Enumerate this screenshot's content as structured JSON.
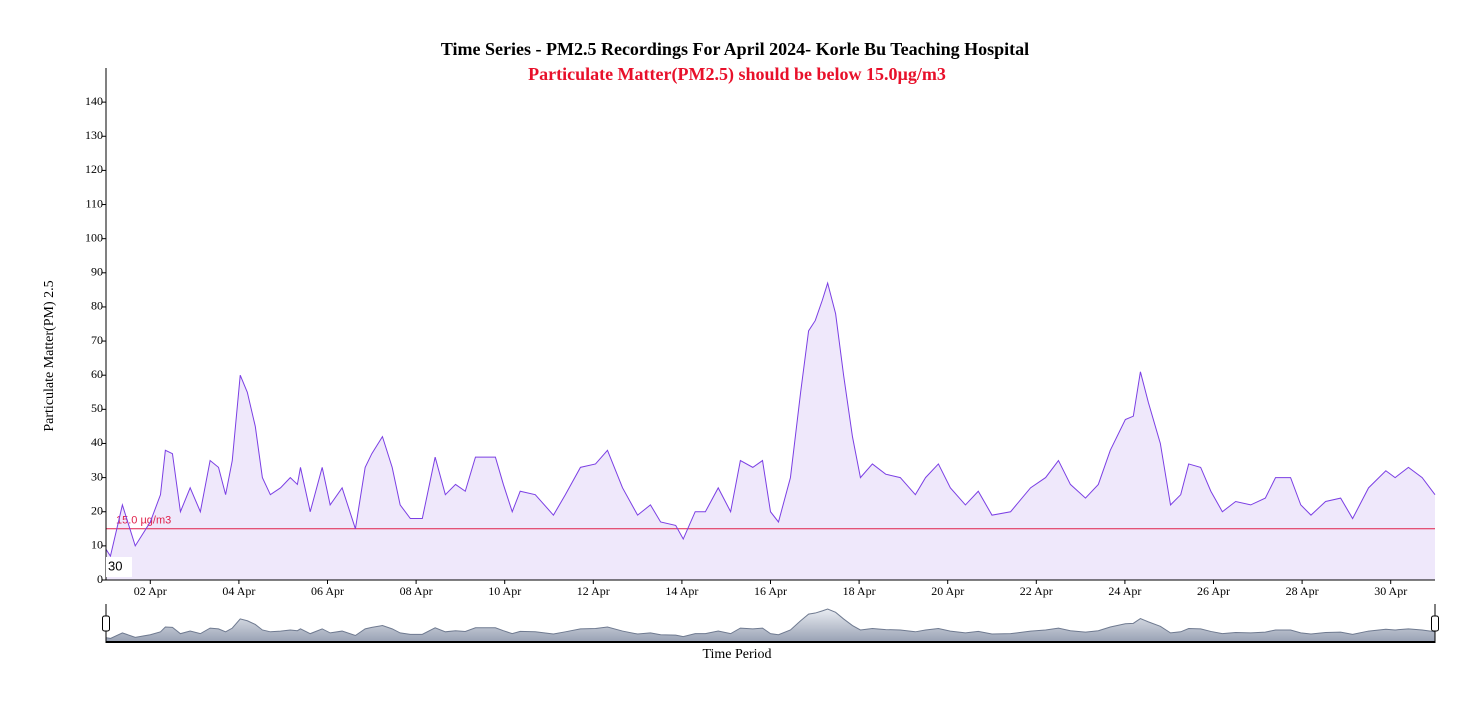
{
  "chart_data": {
    "type": "area",
    "title": "Time Series - PM2.5 Recordings For April 2024- Korle Bu Teaching Hospital",
    "subtitle": "Particulate Matter(PM2.5) should be below 15.0µg/m3",
    "x_label": "Time Period",
    "y_label": "Particulate Matter(PM) 2.5",
    "color": "#7b3fe4",
    "fill": "#efe8fb",
    "x": [
      1.0,
      1.1,
      1.37,
      1.66,
      2.0,
      2.23,
      2.34,
      2.5,
      2.68,
      2.9,
      3.13,
      3.35,
      3.54,
      3.7,
      3.85,
      4.03,
      4.19,
      4.37,
      4.53,
      4.71,
      4.94,
      5.16,
      5.32,
      5.39,
      5.61,
      5.88,
      6.06,
      6.33,
      6.63,
      6.85,
      7.0,
      7.24,
      7.46,
      7.64,
      7.87,
      8.14,
      8.43,
      8.66,
      8.89,
      9.11,
      9.34,
      9.79,
      9.97,
      10.17,
      10.35,
      10.69,
      11.1,
      11.37,
      11.71,
      12.05,
      12.32,
      12.66,
      13.0,
      13.29,
      13.52,
      13.86,
      14.03,
      14.3,
      14.53,
      14.82,
      15.1,
      15.32,
      15.6,
      15.82,
      16.0,
      16.18,
      16.45,
      16.68,
      16.86,
      17.01,
      17.17,
      17.29,
      17.47,
      17.65,
      17.85,
      18.03,
      18.3,
      18.6,
      18.93,
      19.27,
      19.5,
      19.79,
      20.06,
      20.4,
      20.69,
      21.0,
      21.42,
      21.87,
      22.21,
      22.5,
      22.77,
      23.11,
      23.4,
      23.67,
      24.01,
      24.19,
      24.35,
      24.53,
      24.8,
      25.03,
      25.26,
      25.44,
      25.71,
      25.94,
      26.2,
      26.5,
      26.84,
      27.17,
      27.4,
      27.74,
      27.97,
      28.2,
      28.53,
      28.87,
      29.14,
      29.5,
      29.89,
      30.1,
      30.4,
      30.71,
      31.0
    ],
    "values": [
      9,
      7,
      22,
      10,
      17,
      25,
      38,
      37,
      20,
      27,
      20,
      35,
      33,
      25,
      35,
      60,
      55,
      45,
      30,
      25,
      27,
      30,
      28,
      33,
      20,
      33,
      22,
      27,
      15,
      33,
      37,
      42,
      33,
      22,
      18,
      18,
      36,
      25,
      28,
      26,
      36,
      36,
      28,
      20,
      26,
      25,
      19,
      25,
      33,
      34,
      38,
      27,
      19,
      22,
      17,
      16,
      12,
      20,
      20,
      27,
      20,
      35,
      33,
      35,
      20,
      17,
      30,
      55,
      73,
      76,
      82,
      87,
      78,
      60,
      42,
      30,
      34,
      31,
      30,
      25,
      30,
      34,
      27,
      22,
      26,
      19,
      20,
      27,
      30,
      35,
      28,
      24,
      28,
      38,
      47,
      48,
      61,
      52,
      40,
      22,
      25,
      34,
      33,
      26,
      20,
      23,
      22,
      24,
      30,
      30,
      22,
      19,
      23,
      24,
      18,
      27,
      32,
      30,
      33,
      30,
      25
    ],
    "xlim": [
      1,
      31
    ],
    "xticks": [
      {
        "value": 2,
        "label": "02 Apr"
      },
      {
        "value": 4,
        "label": "04 Apr"
      },
      {
        "value": 6,
        "label": "06 Apr"
      },
      {
        "value": 8,
        "label": "08 Apr"
      },
      {
        "value": 10,
        "label": "10 Apr"
      },
      {
        "value": 12,
        "label": "12 Apr"
      },
      {
        "value": 14,
        "label": "14 Apr"
      },
      {
        "value": 16,
        "label": "16 Apr"
      },
      {
        "value": 18,
        "label": "18 Apr"
      },
      {
        "value": 20,
        "label": "20 Apr"
      },
      {
        "value": 22,
        "label": "22 Apr"
      },
      {
        "value": 24,
        "label": "24 Apr"
      },
      {
        "value": 26,
        "label": "26 Apr"
      },
      {
        "value": 28,
        "label": "28 Apr"
      },
      {
        "value": 30,
        "label": "30 Apr"
      }
    ],
    "ylim": [
      0,
      150
    ],
    "yticks": [
      0,
      10,
      20,
      30,
      40,
      50,
      60,
      70,
      80,
      90,
      100,
      110,
      120,
      130,
      140
    ],
    "threshold": {
      "value": 15,
      "label": "15.0 µg/m3",
      "color": "#e0204a"
    },
    "cursor_label": "30"
  }
}
